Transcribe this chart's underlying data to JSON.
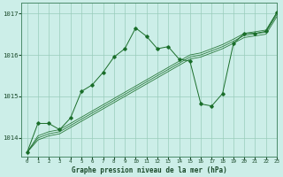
{
  "title": "Graphe pression niveau de la mer (hPa)",
  "bg_color": "#cceee8",
  "grid_color": "#99ccbb",
  "line_color": "#1a6e2a",
  "xlim": [
    -0.5,
    23
  ],
  "ylim": [
    1013.55,
    1017.25
  ],
  "yticks": [
    1014,
    1015,
    1016,
    1017
  ],
  "xticks": [
    0,
    1,
    2,
    3,
    4,
    5,
    6,
    7,
    8,
    9,
    10,
    11,
    12,
    13,
    14,
    15,
    16,
    17,
    18,
    19,
    20,
    21,
    22,
    23
  ],
  "jagged_line": [
    1013.65,
    1014.35,
    1014.35,
    1014.2,
    1014.48,
    1015.12,
    1015.28,
    1015.58,
    1015.95,
    1016.15,
    1016.65,
    1016.45,
    1016.15,
    1016.2,
    1015.9,
    1015.85,
    1014.82,
    1014.77,
    1015.07,
    1016.27,
    1016.52,
    1016.52,
    1016.57,
    1017.02
  ],
  "straight_lines": [
    [
      1013.65,
      1014.05,
      1014.15,
      1014.2,
      1014.35,
      1014.5,
      1014.65,
      1014.8,
      1014.95,
      1015.1,
      1015.25,
      1015.4,
      1015.55,
      1015.7,
      1015.85,
      1016.0,
      1016.05,
      1016.15,
      1016.25,
      1016.38,
      1016.52,
      1016.56,
      1016.6,
      1017.02
    ],
    [
      1013.65,
      1014.0,
      1014.1,
      1014.15,
      1014.3,
      1014.45,
      1014.6,
      1014.75,
      1014.9,
      1015.05,
      1015.2,
      1015.35,
      1015.5,
      1015.65,
      1015.8,
      1015.95,
      1016.0,
      1016.1,
      1016.2,
      1016.33,
      1016.47,
      1016.51,
      1016.55,
      1016.97
    ],
    [
      1013.65,
      1013.95,
      1014.05,
      1014.1,
      1014.25,
      1014.4,
      1014.55,
      1014.7,
      1014.85,
      1015.0,
      1015.15,
      1015.3,
      1015.45,
      1015.6,
      1015.75,
      1015.9,
      1015.95,
      1016.05,
      1016.15,
      1016.28,
      1016.42,
      1016.46,
      1016.5,
      1016.92
    ]
  ]
}
